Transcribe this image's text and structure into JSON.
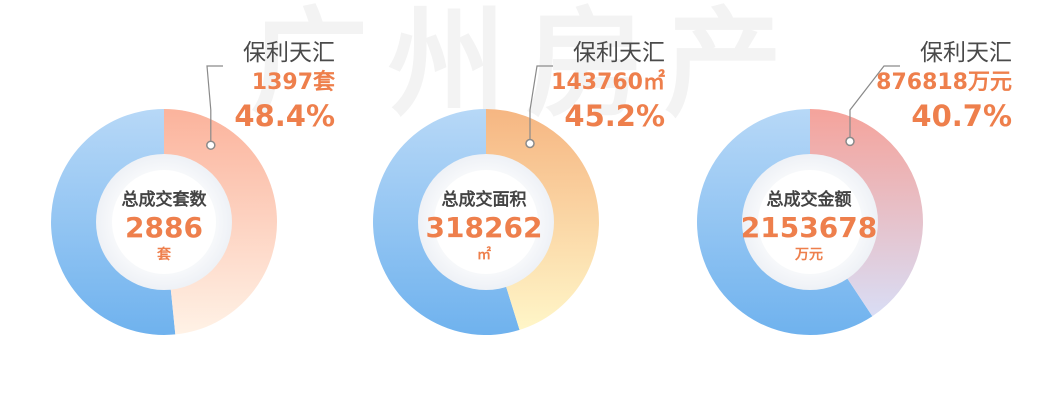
{
  "watermark": "广州房产",
  "colors": {
    "accent": "#ee7f4c",
    "rest_top": "#b7d8f7",
    "rest_bottom": "#6fb2ee",
    "label_text": "#4a4a4a",
    "leader_line": "#8a8a8a"
  },
  "chart_data": [
    {
      "type": "pie",
      "style": "donut",
      "center_label": "总成交套数",
      "total": "2886",
      "unit": "套",
      "highlight": {
        "name": "保利天汇",
        "value": 1397,
        "value_label": "1397套",
        "percent": 48.4,
        "percent_label": "48.4%"
      },
      "colors": {
        "from": "#fbb39c",
        "to": "#fff2e6"
      }
    },
    {
      "type": "pie",
      "style": "donut",
      "center_label": "总成交面积",
      "total": "318262",
      "unit": "㎡",
      "highlight": {
        "name": "保利天汇",
        "value": 143760,
        "value_label": "143760㎡",
        "percent": 45.2,
        "percent_label": "45.2%"
      },
      "colors": {
        "from": "#f6b682",
        "to": "#fff6c8"
      }
    },
    {
      "type": "pie",
      "style": "donut",
      "center_label": "总成交金额",
      "total": "2153678",
      "unit": "万元",
      "highlight": {
        "name": "保利天汇",
        "value": 876818,
        "value_label": "876818万元",
        "percent": 40.7,
        "percent_label": "40.7%"
      },
      "colors": {
        "from": "#f5a39b",
        "to": "#d9ddf5"
      }
    }
  ]
}
